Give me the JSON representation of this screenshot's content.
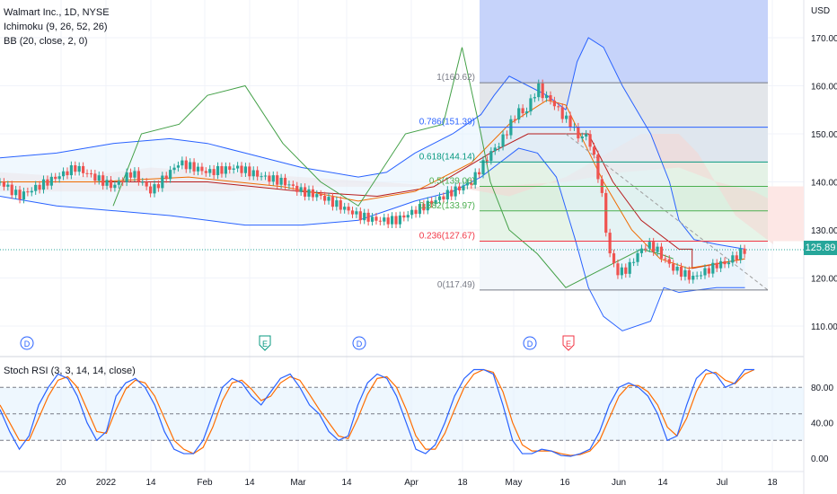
{
  "legend": {
    "symbol": "Walmart Inc., 1D, NYSE",
    "ichimoku": "Ichimoku (9, 26, 52, 26)",
    "bb": "BB (20, close, 2, 0)"
  },
  "oscillator_legend": "Stoch RSI (3, 3, 14, 14, close)",
  "currency": "USD",
  "last_price": "125.89",
  "colors": {
    "up": "#26a69a",
    "down": "#ef5350",
    "bb": "#2962ff",
    "fib_zone_top": "#4c6ef5",
    "lagging": "#43a047",
    "base": "#b71c1c",
    "conversion": "#ef6c00",
    "stoch_k": "#2962ff",
    "stoch_d": "#ff6d00"
  },
  "chart_data": [
    {
      "type": "candlestick",
      "title": "Walmart Inc., 1D, NYSE",
      "y_axis": {
        "label": "USD",
        "ticks": [
          110,
          120,
          130,
          140,
          150,
          160,
          170
        ],
        "range": [
          105,
          175
        ]
      },
      "x_axis_ticks": [
        "20",
        "2022",
        "14",
        "Feb",
        "14",
        "Mar",
        "14",
        "Apr",
        "18",
        "May",
        "16",
        "Jun",
        "14",
        "Jul",
        "18"
      ],
      "close_path": [
        [
          0,
          140
        ],
        [
          10,
          137
        ],
        [
          25,
          140
        ],
        [
          40,
          143
        ],
        [
          50,
          141
        ],
        [
          60,
          139
        ],
        [
          70,
          142
        ],
        [
          80,
          138
        ],
        [
          95,
          144
        ],
        [
          110,
          142
        ],
        [
          125,
          143
        ],
        [
          140,
          141
        ],
        [
          150,
          140
        ],
        [
          160,
          138
        ],
        [
          170,
          137
        ],
        [
          180,
          135
        ],
        [
          190,
          133
        ],
        [
          200,
          132
        ],
        [
          210,
          132
        ],
        [
          220,
          134
        ],
        [
          230,
          136
        ],
        [
          240,
          138
        ],
        [
          250,
          140
        ],
        [
          255,
          143
        ],
        [
          260,
          146
        ],
        [
          265,
          148
        ],
        [
          268,
          150
        ],
        [
          272,
          153
        ],
        [
          275,
          155
        ],
        [
          278,
          154
        ],
        [
          283,
          158
        ],
        [
          285,
          160
        ],
        [
          288,
          158
        ],
        [
          292,
          157
        ],
        [
          296,
          155
        ],
        [
          300,
          153
        ],
        [
          303,
          152
        ],
        [
          307,
          149
        ],
        [
          310,
          150
        ],
        [
          313,
          148
        ],
        [
          318,
          140
        ],
        [
          320,
          135
        ],
        [
          322,
          127
        ],
        [
          325,
          123
        ],
        [
          328,
          121
        ],
        [
          333,
          122
        ],
        [
          338,
          125
        ],
        [
          343,
          127
        ],
        [
          348,
          126
        ],
        [
          352,
          124
        ],
        [
          357,
          122
        ],
        [
          362,
          121
        ],
        [
          367,
          120
        ],
        [
          372,
          121
        ],
        [
          377,
          122
        ],
        [
          381,
          123
        ],
        [
          385,
          123
        ],
        [
          388,
          124
        ],
        [
          392,
          125
        ],
        [
          395,
          125.89
        ]
      ],
      "last_price": 125.89,
      "fibonacci_retracement": [
        {
          "label": "1(160.62)",
          "level": 1,
          "price": 160.62
        },
        {
          "label": "0.786(151.39)",
          "level": 0.786,
          "price": 151.39
        },
        {
          "label": "0.618(144.14)",
          "level": 0.618,
          "price": 144.14
        },
        {
          "label": "0.5(139.06)",
          "level": 0.5,
          "price": 139.06
        },
        {
          "label": "0.382(133.97)",
          "level": 0.382,
          "price": 133.97
        },
        {
          "label": "0.236(127.67)",
          "level": 0.236,
          "price": 127.67
        },
        {
          "label": "0(117.49)",
          "level": 0,
          "price": 117.49
        }
      ],
      "event_markers": [
        "D",
        "E",
        "D",
        "D",
        "E"
      ]
    },
    {
      "type": "line",
      "title": "Stoch RSI (3, 3, 14, 14, close)",
      "y_axis": {
        "ticks": [
          0,
          40,
          80
        ],
        "tick_labels": [
          "0.00",
          "40.00",
          "80.00"
        ],
        "range": [
          -5,
          105
        ],
        "bands": [
          20,
          50,
          80
        ]
      },
      "series": [
        {
          "name": "K",
          "values": [
            55,
            30,
            10,
            25,
            60,
            80,
            95,
            90,
            70,
            40,
            20,
            30,
            70,
            85,
            90,
            80,
            60,
            30,
            10,
            5,
            5,
            20,
            50,
            80,
            90,
            85,
            70,
            60,
            75,
            90,
            95,
            80,
            60,
            50,
            30,
            20,
            25,
            60,
            85,
            95,
            90,
            70,
            40,
            10,
            5,
            15,
            40,
            70,
            90,
            100,
            100,
            95,
            60,
            20,
            5,
            5,
            10,
            8,
            3,
            2,
            5,
            10,
            30,
            60,
            80,
            85,
            80,
            70,
            50,
            20,
            25,
            60,
            90,
            100,
            95,
            80,
            85,
            100,
            100
          ]
        },
        {
          "name": "D",
          "values": [
            60,
            40,
            20,
            20,
            45,
            70,
            88,
            92,
            80,
            55,
            30,
            28,
            55,
            78,
            88,
            85,
            70,
            45,
            20,
            10,
            5,
            12,
            35,
            65,
            85,
            88,
            78,
            65,
            70,
            85,
            92,
            88,
            72,
            55,
            40,
            25,
            22,
            45,
            72,
            90,
            92,
            80,
            55,
            25,
            10,
            10,
            28,
            55,
            80,
            95,
            100,
            97,
            75,
            40,
            15,
            8,
            8,
            8,
            5,
            3,
            4,
            8,
            20,
            45,
            70,
            82,
            82,
            75,
            60,
            35,
            25,
            45,
            75,
            95,
            97,
            88,
            84,
            95,
            100
          ]
        }
      ]
    }
  ]
}
